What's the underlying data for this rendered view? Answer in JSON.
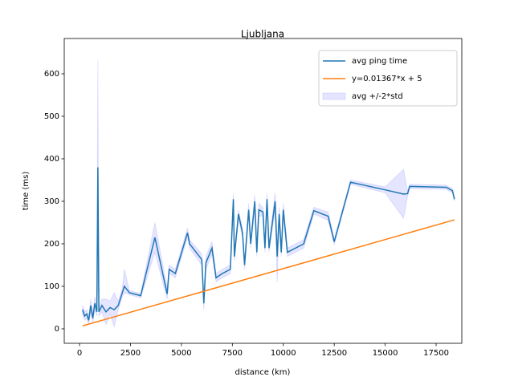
{
  "chart_data": {
    "type": "line",
    "title": "Ljubljana",
    "x_label": "distance (km)",
    "y_label": "time (ms)",
    "xlim": [
      -750,
      18760
    ],
    "ylim": [
      -34,
      683
    ],
    "xticks": [
      0,
      2500,
      5000,
      7500,
      10000,
      12500,
      15000,
      17500
    ],
    "yticks": [
      0,
      100,
      200,
      300,
      400,
      500,
      600
    ],
    "legend": "upper right",
    "series": [
      {
        "name": "avg ping time",
        "kind": "line",
        "color": "#1f77b4",
        "x": [
          150,
          250,
          350,
          450,
          550,
          650,
          750,
          850,
          900,
          950,
          1100,
          1300,
          1500,
          1700,
          1900,
          2100,
          2200,
          2450,
          3000,
          3700,
          4300,
          4400,
          4700,
          5300,
          5400,
          6000,
          6100,
          6200,
          6500,
          6700,
          7000,
          7400,
          7550,
          7600,
          7800,
          8000,
          8100,
          8300,
          8400,
          8600,
          8700,
          8800,
          9000,
          9100,
          9200,
          9300,
          9600,
          9700,
          9800,
          9900,
          10000,
          10200,
          11000,
          11500,
          12200,
          12500,
          13300,
          15000,
          15900,
          16100,
          16200,
          18000,
          18300,
          18400
        ],
        "values": [
          45,
          30,
          35,
          20,
          55,
          25,
          60,
          40,
          380,
          40,
          55,
          40,
          50,
          45,
          55,
          85,
          100,
          85,
          78,
          215,
          82,
          140,
          130,
          226,
          200,
          163,
          60,
          155,
          190,
          120,
          130,
          140,
          305,
          170,
          270,
          225,
          150,
          280,
          200,
          300,
          180,
          280,
          275,
          190,
          305,
          190,
          300,
          170,
          270,
          180,
          280,
          180,
          200,
          278,
          265,
          205,
          345,
          327,
          317,
          318,
          335,
          333,
          325,
          305
        ]
      },
      {
        "name": "y=0.01367*x + 5",
        "kind": "line",
        "color": "#ff7f0e",
        "x": [
          150,
          18400
        ],
        "values": [
          7.05,
          256.5
        ]
      },
      {
        "name": "avg +/-2*std",
        "kind": "band",
        "color": "#0000ff",
        "x": [
          150,
          250,
          350,
          450,
          550,
          650,
          750,
          850,
          900,
          950,
          1100,
          1300,
          1500,
          1700,
          1900,
          2100,
          2200,
          2450,
          3000,
          3700,
          4300,
          4400,
          4700,
          5300,
          5400,
          6000,
          6100,
          6200,
          6500,
          6700,
          7000,
          7400,
          7550,
          7600,
          7800,
          8000,
          8100,
          8300,
          8400,
          8600,
          8700,
          8800,
          9000,
          9100,
          9200,
          9300,
          9600,
          9700,
          9800,
          9900,
          10000,
          10200,
          11000,
          11500,
          12200,
          12500,
          13300,
          15000,
          15900,
          16100,
          16200,
          18000,
          18300,
          18400
        ],
        "lower": [
          35,
          20,
          25,
          10,
          40,
          15,
          45,
          30,
          127,
          30,
          40,
          10,
          35,
          5,
          45,
          75,
          85,
          80,
          73,
          180,
          70,
          130,
          120,
          215,
          190,
          150,
          45,
          140,
          175,
          110,
          120,
          130,
          290,
          160,
          260,
          215,
          140,
          265,
          190,
          285,
          170,
          265,
          265,
          180,
          290,
          180,
          280,
          110,
          255,
          170,
          265,
          170,
          190,
          270,
          255,
          198,
          340,
          320,
          260,
          312,
          330,
          328,
          320,
          300
        ],
        "upper": [
          55,
          40,
          45,
          30,
          70,
          35,
          75,
          50,
          633,
          50,
          70,
          70,
          65,
          85,
          65,
          95,
          140,
          90,
          83,
          250,
          95,
          150,
          140,
          237,
          210,
          176,
          75,
          170,
          205,
          130,
          140,
          150,
          320,
          180,
          280,
          235,
          160,
          295,
          210,
          315,
          190,
          295,
          285,
          200,
          320,
          200,
          320,
          200,
          285,
          190,
          295,
          190,
          210,
          286,
          275,
          212,
          350,
          334,
          375,
          324,
          340,
          338,
          330,
          310
        ]
      }
    ]
  }
}
